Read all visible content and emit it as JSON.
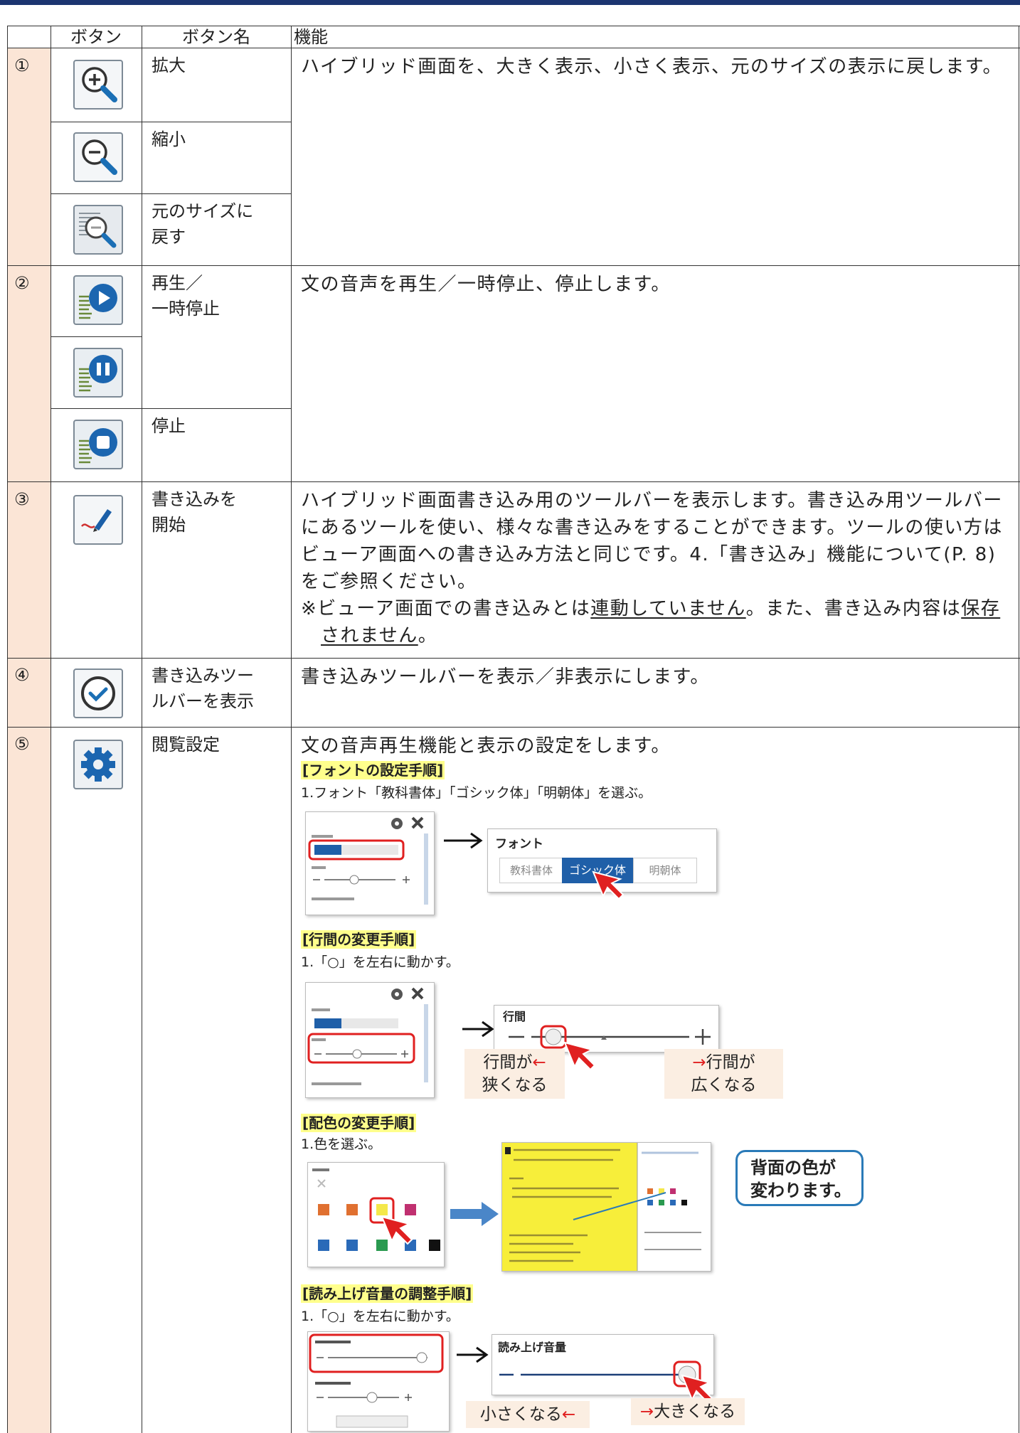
{
  "header": {
    "columns": [
      "ボタン",
      "ボタン名",
      "機能"
    ]
  },
  "rows": [
    {
      "number": "①",
      "buttons": [
        "拡大",
        "縮小",
        "元のサイズに\n戻す"
      ],
      "description": "ハイブリッド画面を、大きく表示、小さく表示、元のサイズの表示に戻します。"
    },
    {
      "number": "②",
      "buttons": [
        "再生／\n一時停止",
        "停止"
      ],
      "description": "文の音声を再生／一時停止、停止します。"
    },
    {
      "number": "③",
      "buttons": [
        "書き込みを\n開始"
      ],
      "description": {
        "text": "ハイブリッド画面書き込み用のツールバーを表示します。書き込み用ツールバーにあるツールを使い、様々な書き込みをすることができます。ツールの使い方はビューア画面への書き込み方法と同じです。4.「書き込み」機能について(P. 8)をご参照ください。",
        "note": [
          "※ビューア画面での書き込みとは",
          "連動していません",
          "。また、書き込み内容は",
          "保存されません",
          "。"
        ]
      }
    },
    {
      "number": "④",
      "buttons": [
        "書き込みツー\nルバーを表示"
      ],
      "description": "書き込みツールバーを表示／非表示にします。"
    },
    {
      "number": "⑤",
      "buttons": [
        "閲覧設定"
      ],
      "description": {
        "intro": "文の音声再生機能と表示の設定をします。",
        "sections": [
          {
            "heading": "[フォントの設定手順]",
            "step": "1.フォント「教科書体」「ゴシック体」「明朝体」を選ぶ。",
            "figure": {
              "title": "フォント",
              "options": [
                "教科書体",
                "ゴシック体",
                "明朝体"
              ]
            }
          },
          {
            "heading": "[行間の変更手順]",
            "step": "1.「○」を左右に動かす。",
            "figure": {
              "title": "行間",
              "left_label": [
                "行間が",
                "←",
                "狭くなる"
              ],
              "right_label": [
                "→",
                "行間が",
                "広くなる"
              ]
            }
          },
          {
            "heading": "[配色の変更手順]",
            "step": "1.色を選ぶ。",
            "figure": {
              "callout": "背面の色が\n変わります。"
            }
          },
          {
            "heading": "[読み上げ音量の調整手順]",
            "step": "1.「○」を左右に動かす。",
            "figure": {
              "title": "読み上げ音量",
              "left_label": [
                "小さくなる",
                "←"
              ],
              "right_label": [
                "→",
                "大きくなる"
              ]
            }
          }
        ]
      }
    }
  ]
}
